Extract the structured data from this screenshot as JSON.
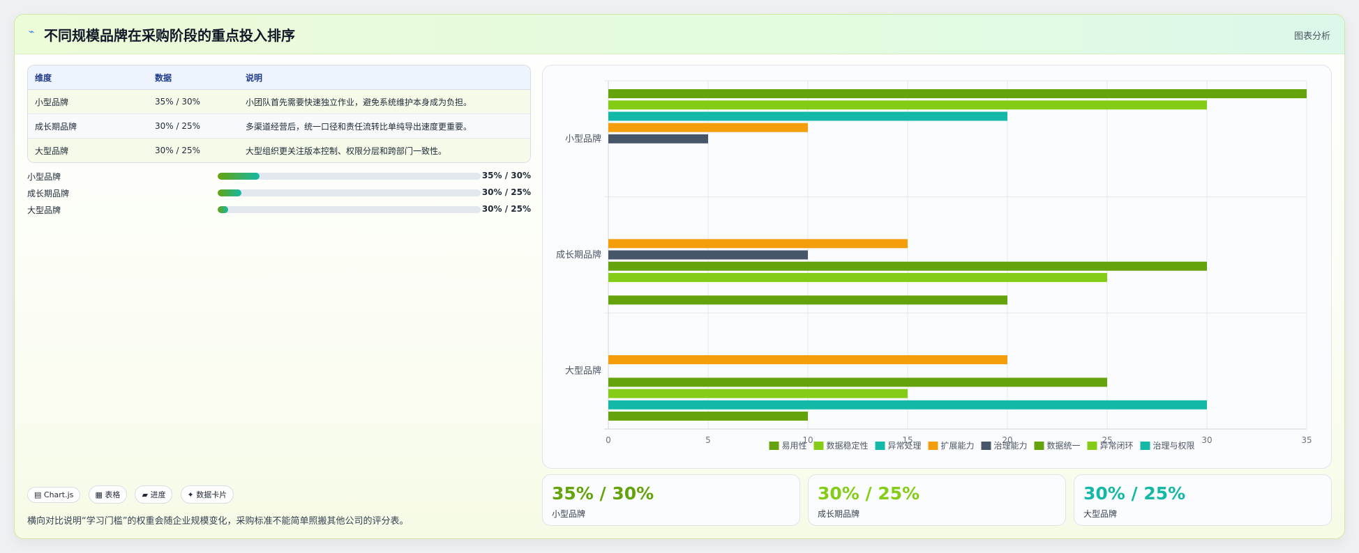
{
  "header": {
    "glyph": "⌁",
    "title": "不同规模品牌在采购阶段的重点投入排序",
    "tag": "图表分析"
  },
  "table": {
    "headers": [
      "维度",
      "数据",
      "说明"
    ],
    "rows": [
      [
        "小型品牌",
        "35% / 30%",
        "小团队首先需要快速独立作业，避免系统维护本身成为负担。"
      ],
      [
        "成长期品牌",
        "30% / 25%",
        "多渠道经营后，统一口径和责任流转比单纯导出速度更重要。"
      ],
      [
        "大型品牌",
        "30% / 25%",
        "大型组织更关注版本控制、权限分层和跨部门一致性。"
      ]
    ]
  },
  "progress": [
    {
      "label": "小型品牌",
      "value": "35% / 30%",
      "fraction": 0.16
    },
    {
      "label": "成长期品牌",
      "value": "30% / 25%",
      "fraction": 0.09
    },
    {
      "label": "大型品牌",
      "value": "30% / 25%",
      "fraction": 0.04
    }
  ],
  "chips": [
    "▤ Chart.js",
    "▦ 表格",
    "▰ 进度",
    "✦ 数据卡片"
  ],
  "footnote": "横向对比说明“学习门槛”的权重会随企业规模变化，采购标准不能简单照搬其他公司的评分表。",
  "stats": [
    {
      "value": "35% / 30%",
      "label": "小型品牌",
      "color": "#65a30d"
    },
    {
      "value": "30% / 25%",
      "label": "成长期品牌",
      "color": "#84cc16"
    },
    {
      "value": "30% / 25%",
      "label": "大型品牌",
      "color": "#14b8a6"
    }
  ],
  "chart_data": {
    "type": "bar",
    "orientation": "horizontal",
    "categories": [
      "小型品牌",
      "成长期品牌",
      "大型品牌"
    ],
    "series": [
      {
        "name": "易用性",
        "color": "#65a30d",
        "values": [
          35,
          null,
          null
        ]
      },
      {
        "name": "数据稳定性",
        "color": "#84cc16",
        "values": [
          30,
          null,
          null
        ]
      },
      {
        "name": "异常处理",
        "color": "#14b8a6",
        "values": [
          20,
          null,
          null
        ]
      },
      {
        "name": "扩展能力",
        "color": "#f59e0b",
        "values": [
          10,
          15,
          20
        ]
      },
      {
        "name": "治理能力",
        "color": "#475569",
        "values": [
          5,
          10,
          null
        ]
      },
      {
        "name": "数据统一",
        "color": "#65a30d",
        "values": [
          null,
          30,
          25
        ]
      },
      {
        "name": "异常闭环",
        "color": "#84cc16",
        "values": [
          null,
          25,
          15
        ]
      },
      {
        "name": "治理与权限",
        "color": "#14b8a6",
        "values": [
          null,
          null,
          30
        ]
      },
      {
        "name": "",
        "color": "#65a30d",
        "values": [
          null,
          20,
          10
        ]
      }
    ],
    "xlim": [
      0,
      35
    ],
    "xticks": [
      0,
      5,
      10,
      15,
      20,
      25,
      30,
      35
    ],
    "grid": true,
    "legend_position": "bottom"
  }
}
